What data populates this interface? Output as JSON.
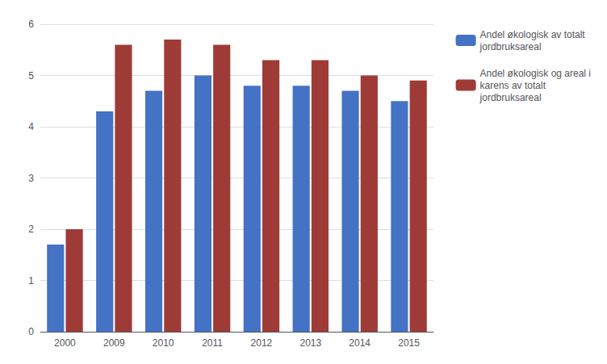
{
  "chart_data": {
    "type": "bar",
    "categories": [
      "2000",
      "2009",
      "2010",
      "2011",
      "2012",
      "2013",
      "2014",
      "2015"
    ],
    "series": [
      {
        "name": "Andel økologisk av totalt\njordbruksareal",
        "color": "#4472C4",
        "values": [
          1.7,
          4.3,
          4.7,
          5.0,
          4.8,
          4.8,
          4.7,
          4.5
        ]
      },
      {
        "name": "Andel økologisk og areal i\nkarens av totalt\njordbruksareal",
        "color": "#9E3B37",
        "values": [
          2.0,
          5.6,
          5.7,
          5.6,
          5.3,
          5.3,
          5.0,
          4.9
        ]
      }
    ],
    "ylim": [
      0,
      6
    ],
    "yticks": [
      0,
      1,
      2,
      3,
      4,
      5,
      6
    ],
    "grid": true,
    "legend": "right"
  }
}
